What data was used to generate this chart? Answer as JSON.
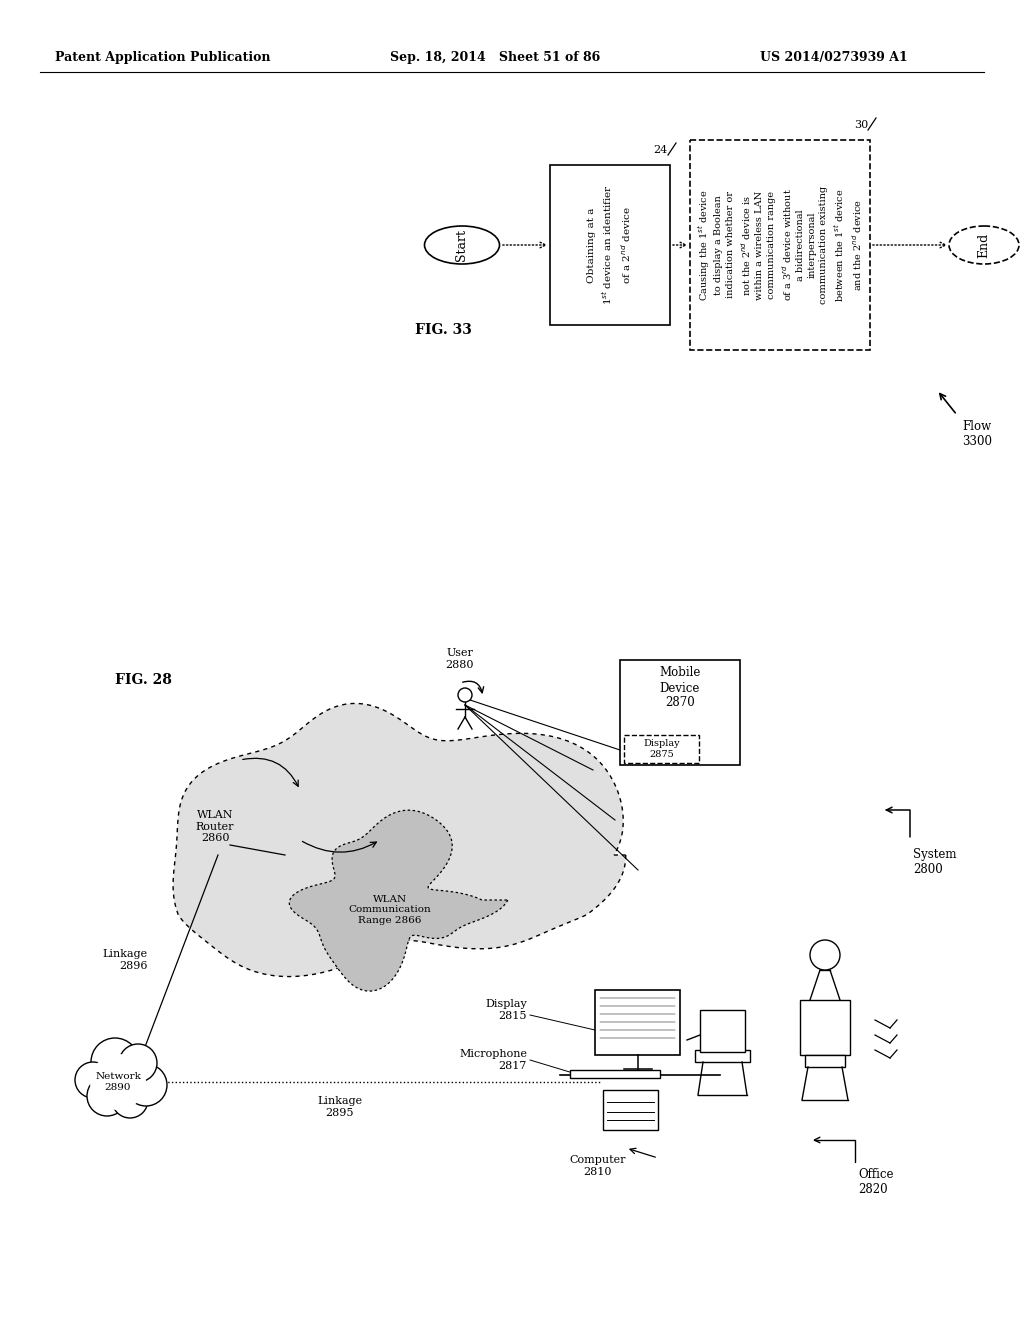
{
  "title_left": "Patent Application Publication",
  "title_mid": "Sep. 18, 2014   Sheet 51 of 86",
  "title_right": "US 2014/0273939 A1",
  "fig33_label": "FIG. 33",
  "fig28_label": "FIG. 28",
  "flow_label": "Flow\n3300",
  "start_label": "Start",
  "end_label": "End",
  "box1_num": "24",
  "box2_num": "30",
  "box1_line1": "Obtaining at a",
  "box1_line2": "1",
  "box1_line2b": "st",
  "box1_line2c": " device an identifier",
  "box1_line3": "of a 2",
  "box1_line3b": "nd",
  "box1_line3c": " device",
  "system_label": "System\n2800",
  "office_label": "Office\n2820",
  "wlan_router_label": "WLAN\nRouter\n2860",
  "wlan_range_label": "WLAN\nCommunication\nRange 2866",
  "network_label": "Network\n2890",
  "linkage_2895": "Linkage\n2895",
  "linkage_2896": "Linkage\n2896",
  "computer_label": "Computer\n2810",
  "display_2815": "Display\n2815",
  "microphone_label": "Microphone\n2817",
  "mobile_device_label": "Mobile\nDevice\n2870",
  "display_2875": "Display\n2875",
  "user_label": "User\n2880",
  "bg_color": "#ffffff",
  "line_color": "#000000",
  "text_color": "#000000"
}
